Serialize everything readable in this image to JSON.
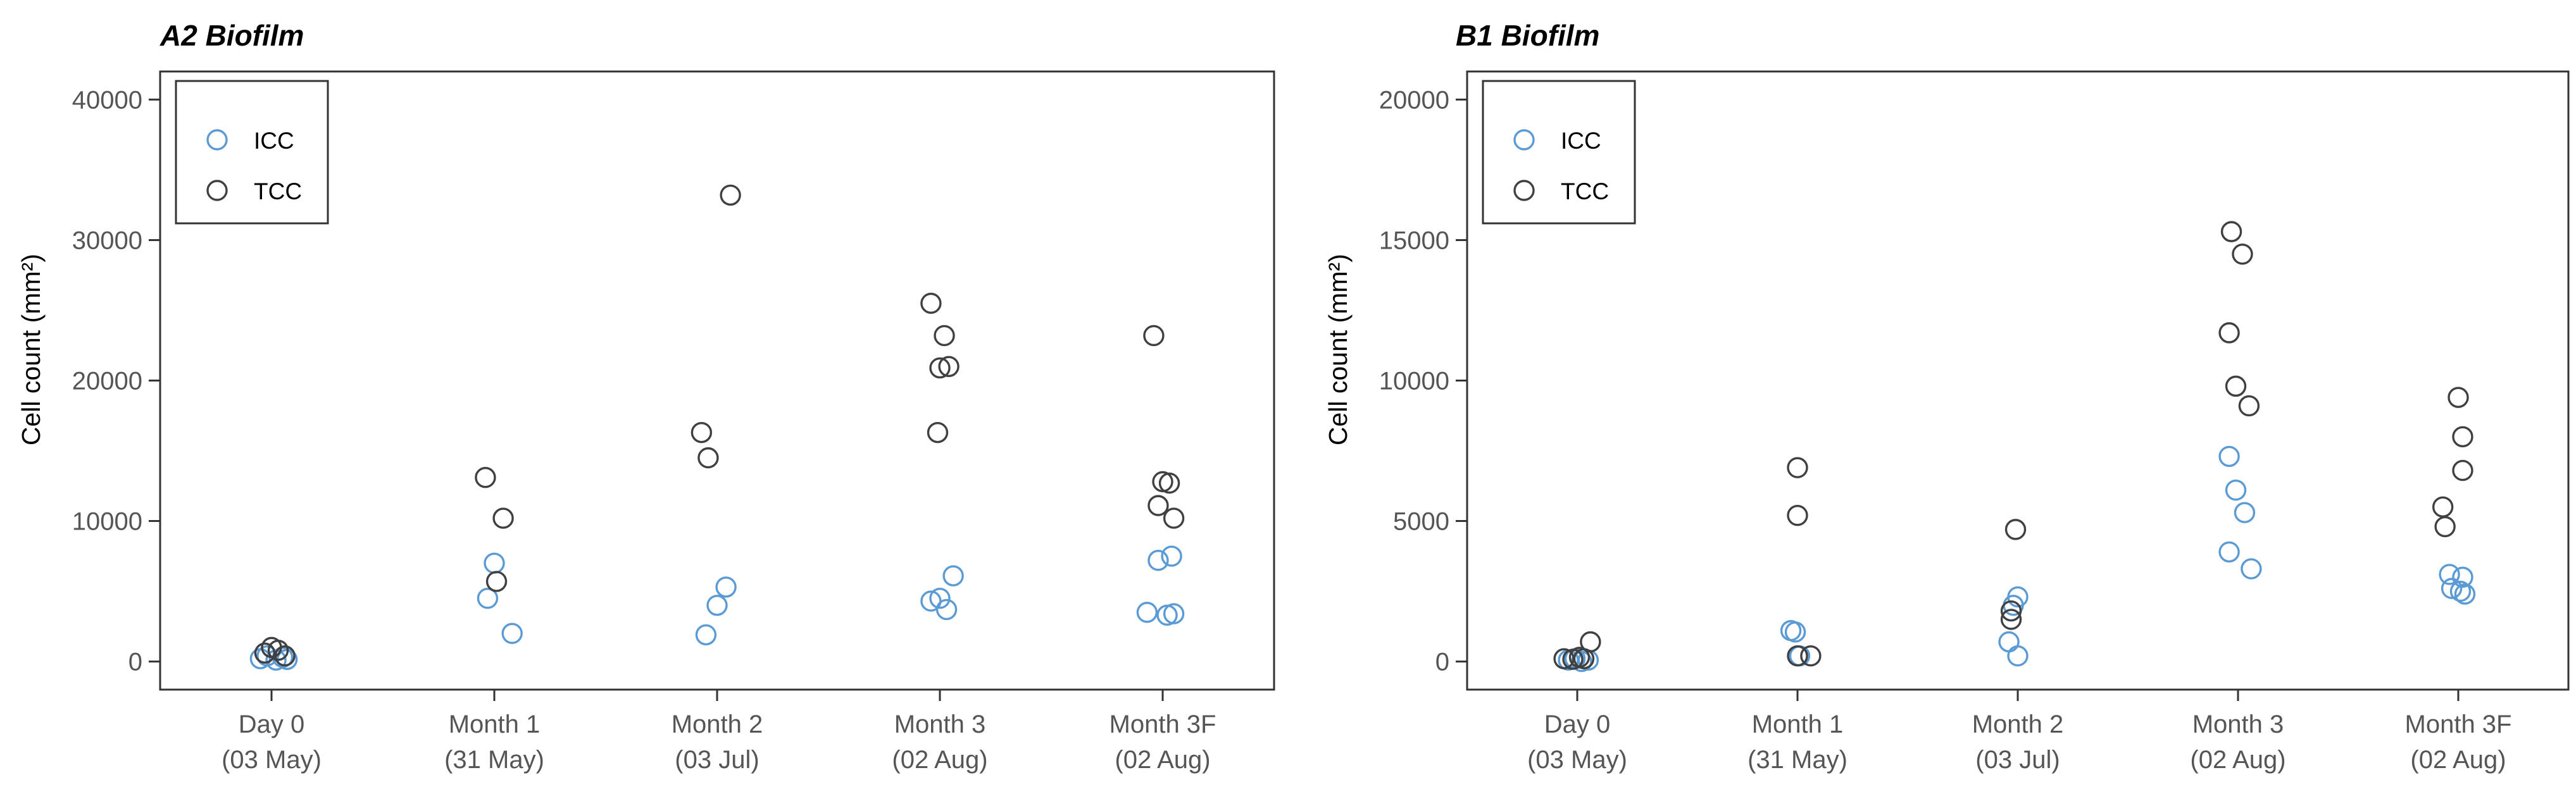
{
  "colors": {
    "ICC": "#5b9bd5",
    "TCC": "#404040"
  },
  "chart_data": [
    {
      "type": "scatter",
      "title": "A2 Biofilm",
      "ylabel": "Cell count (mm²)",
      "ylim": [
        -2000,
        42000
      ],
      "yticks": [
        0,
        10000,
        20000,
        30000,
        40000
      ],
      "categories": [
        "Day 0\n(03 May)",
        "Month 1\n(31 May)",
        "Month 2\n(03 Jul)",
        "Month 3\n(02 Aug)",
        "Month 3F\n(02 Aug)"
      ],
      "legend": {
        "position": "top-left",
        "entries": [
          "ICC",
          "TCC"
        ]
      },
      "series": [
        {
          "name": "ICC",
          "points": [
            {
              "c": 0,
              "x": 0.95,
              "y": 200
            },
            {
              "c": 0,
              "x": 0.98,
              "y": 400
            },
            {
              "c": 0,
              "x": 1.02,
              "y": 100
            },
            {
              "c": 0,
              "x": 1.05,
              "y": 300
            },
            {
              "c": 0,
              "x": 1.07,
              "y": 150
            },
            {
              "c": 1,
              "x": 1.97,
              "y": 4500
            },
            {
              "c": 1,
              "x": 2.0,
              "y": 7000
            },
            {
              "c": 1,
              "x": 2.08,
              "y": 2000
            },
            {
              "c": 2,
              "x": 2.95,
              "y": 1900
            },
            {
              "c": 2,
              "x": 3.0,
              "y": 4000
            },
            {
              "c": 2,
              "x": 3.04,
              "y": 5300
            },
            {
              "c": 3,
              "x": 3.96,
              "y": 4300
            },
            {
              "c": 3,
              "x": 4.0,
              "y": 4500
            },
            {
              "c": 3,
              "x": 4.03,
              "y": 3700
            },
            {
              "c": 3,
              "x": 4.06,
              "y": 6100
            },
            {
              "c": 4,
              "x": 4.93,
              "y": 3500
            },
            {
              "c": 4,
              "x": 4.98,
              "y": 7200
            },
            {
              "c": 4,
              "x": 5.02,
              "y": 3300
            },
            {
              "c": 4,
              "x": 5.04,
              "y": 7500
            },
            {
              "c": 4,
              "x": 5.05,
              "y": 3400
            }
          ]
        },
        {
          "name": "TCC",
          "points": [
            {
              "c": 0,
              "x": 0.97,
              "y": 600
            },
            {
              "c": 0,
              "x": 1.0,
              "y": 1000
            },
            {
              "c": 0,
              "x": 1.03,
              "y": 800
            },
            {
              "c": 0,
              "x": 1.06,
              "y": 400
            },
            {
              "c": 1,
              "x": 1.96,
              "y": 13100
            },
            {
              "c": 1,
              "x": 2.01,
              "y": 5700
            },
            {
              "c": 1,
              "x": 2.04,
              "y": 10200
            },
            {
              "c": 2,
              "x": 2.93,
              "y": 16300
            },
            {
              "c": 2,
              "x": 2.96,
              "y": 14500
            },
            {
              "c": 2,
              "x": 3.06,
              "y": 33200
            },
            {
              "c": 3,
              "x": 3.96,
              "y": 25500
            },
            {
              "c": 3,
              "x": 3.99,
              "y": 16300
            },
            {
              "c": 3,
              "x": 4.0,
              "y": 20900
            },
            {
              "c": 3,
              "x": 4.02,
              "y": 23200
            },
            {
              "c": 3,
              "x": 4.04,
              "y": 21000
            },
            {
              "c": 4,
              "x": 4.96,
              "y": 23200
            },
            {
              "c": 4,
              "x": 4.98,
              "y": 11100
            },
            {
              "c": 4,
              "x": 5.0,
              "y": 12800
            },
            {
              "c": 4,
              "x": 5.03,
              "y": 12700
            },
            {
              "c": 4,
              "x": 5.05,
              "y": 10200
            }
          ]
        }
      ]
    },
    {
      "type": "scatter",
      "title": "B1 Biofilm",
      "ylabel": "Cell count (mm²)",
      "ylim": [
        -1000,
        21000
      ],
      "yticks": [
        0,
        5000,
        10000,
        15000,
        20000
      ],
      "categories": [
        "Day 0\n(03 May)",
        "Month 1\n(31 May)",
        "Month 2\n(03 Jul)",
        "Month 3\n(02 Aug)",
        "Month 3F\n(02 Aug)"
      ],
      "legend": {
        "position": "top-left",
        "entries": [
          "ICC",
          "TCC"
        ]
      },
      "series": [
        {
          "name": "ICC",
          "points": [
            {
              "c": 0,
              "x": 0.96,
              "y": 50
            },
            {
              "c": 0,
              "x": 0.99,
              "y": 100
            },
            {
              "c": 0,
              "x": 1.02,
              "y": 0
            },
            {
              "c": 0,
              "x": 1.05,
              "y": 50
            },
            {
              "c": 1,
              "x": 1.97,
              "y": 1100
            },
            {
              "c": 1,
              "x": 1.99,
              "y": 1050
            },
            {
              "c": 1,
              "x": 2.01,
              "y": 200
            },
            {
              "c": 2,
              "x": 2.96,
              "y": 700
            },
            {
              "c": 2,
              "x": 2.98,
              "y": 2000
            },
            {
              "c": 2,
              "x": 3.0,
              "y": 2300
            },
            {
              "c": 2,
              "x": 3.0,
              "y": 200
            },
            {
              "c": 3,
              "x": 3.96,
              "y": 3900
            },
            {
              "c": 3,
              "x": 3.96,
              "y": 7300
            },
            {
              "c": 3,
              "x": 3.99,
              "y": 6100
            },
            {
              "c": 3,
              "x": 4.03,
              "y": 5300
            },
            {
              "c": 3,
              "x": 4.06,
              "y": 3300
            },
            {
              "c": 4,
              "x": 4.96,
              "y": 3100
            },
            {
              "c": 4,
              "x": 4.97,
              "y": 2600
            },
            {
              "c": 4,
              "x": 5.02,
              "y": 3000
            },
            {
              "c": 4,
              "x": 5.03,
              "y": 2400
            },
            {
              "c": 4,
              "x": 5.01,
              "y": 2500
            }
          ]
        },
        {
          "name": "TCC",
          "points": [
            {
              "c": 0,
              "x": 0.94,
              "y": 100
            },
            {
              "c": 0,
              "x": 0.98,
              "y": 80
            },
            {
              "c": 0,
              "x": 1.01,
              "y": 150
            },
            {
              "c": 0,
              "x": 1.03,
              "y": 100
            },
            {
              "c": 0,
              "x": 1.06,
              "y": 700
            },
            {
              "c": 1,
              "x": 2.0,
              "y": 6900
            },
            {
              "c": 1,
              "x": 2.0,
              "y": 5200
            },
            {
              "c": 1,
              "x": 2.0,
              "y": 200
            },
            {
              "c": 1,
              "x": 2.06,
              "y": 200
            },
            {
              "c": 2,
              "x": 2.97,
              "y": 1500
            },
            {
              "c": 2,
              "x": 2.97,
              "y": 1800
            },
            {
              "c": 2,
              "x": 2.99,
              "y": 4700
            },
            {
              "c": 3,
              "x": 3.96,
              "y": 11700
            },
            {
              "c": 3,
              "x": 3.97,
              "y": 15300
            },
            {
              "c": 3,
              "x": 3.99,
              "y": 9800
            },
            {
              "c": 3,
              "x": 4.02,
              "y": 14500
            },
            {
              "c": 3,
              "x": 4.05,
              "y": 9100
            },
            {
              "c": 4,
              "x": 4.93,
              "y": 5500
            },
            {
              "c": 4,
              "x": 4.94,
              "y": 4800
            },
            {
              "c": 4,
              "x": 5.0,
              "y": 9400
            },
            {
              "c": 4,
              "x": 5.02,
              "y": 8000
            },
            {
              "c": 4,
              "x": 5.02,
              "y": 6800
            }
          ]
        }
      ]
    }
  ]
}
